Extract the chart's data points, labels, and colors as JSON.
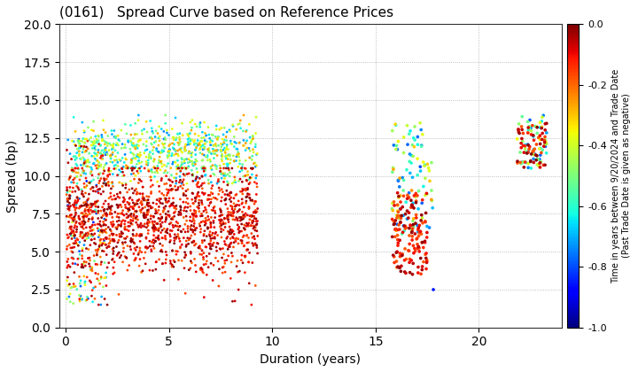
{
  "title": "(0161)   Spread Curve based on Reference Prices",
  "xlabel": "Duration (years)",
  "ylabel": "Spread (bp)",
  "colorbar_label": "Time in years between 9/20/2024 and Trade Date\n(Past Trade Date is given as negative)",
  "xlim": [
    -0.3,
    24
  ],
  "ylim": [
    0.0,
    20.0
  ],
  "xticks": [
    0,
    5,
    10,
    15,
    20
  ],
  "yticks": [
    0.0,
    2.5,
    5.0,
    7.5,
    10.0,
    12.5,
    15.0,
    17.5,
    20.0
  ],
  "cmap": "jet",
  "vmin": -1.0,
  "vmax": 0.0,
  "colorbar_ticks": [
    0.0,
    -0.2,
    -0.4,
    -0.6,
    -0.8,
    -1.0
  ],
  "background_color": "#ffffff",
  "grid_color": "#999999"
}
